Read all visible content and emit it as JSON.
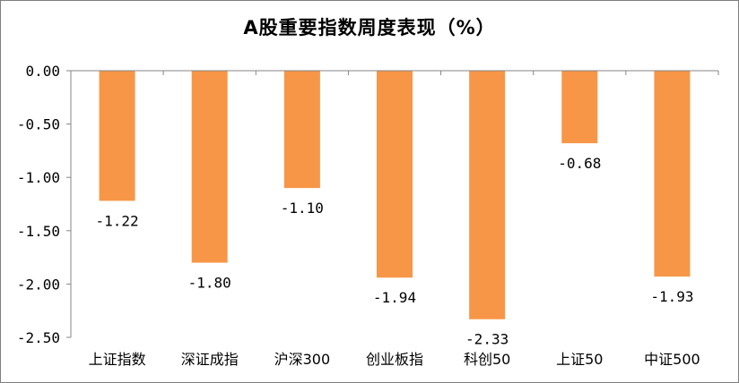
{
  "chart_data": {
    "type": "bar",
    "title": "A股重要指数周度表现（%）",
    "categories": [
      "上证指数",
      "深证成指",
      "沪深300",
      "创业板指",
      "科创50",
      "上证50",
      "中证500"
    ],
    "values": [
      -1.22,
      -1.8,
      -1.1,
      -1.94,
      -2.33,
      -0.68,
      -1.93
    ],
    "data_labels": [
      "-1.22",
      "-1.80",
      "-1.10",
      "-1.94",
      "-2.33",
      "-0.68",
      "-1.93"
    ],
    "y_ticks": [
      "0.00",
      "-0.50",
      "-1.00",
      "-1.50",
      "-2.00",
      "-2.50"
    ],
    "ylim": [
      -2.5,
      0
    ],
    "xlabel": "",
    "ylabel": "",
    "grid": false,
    "legend": "none",
    "bar_color": "#F79646",
    "axis_color": "#868686"
  }
}
